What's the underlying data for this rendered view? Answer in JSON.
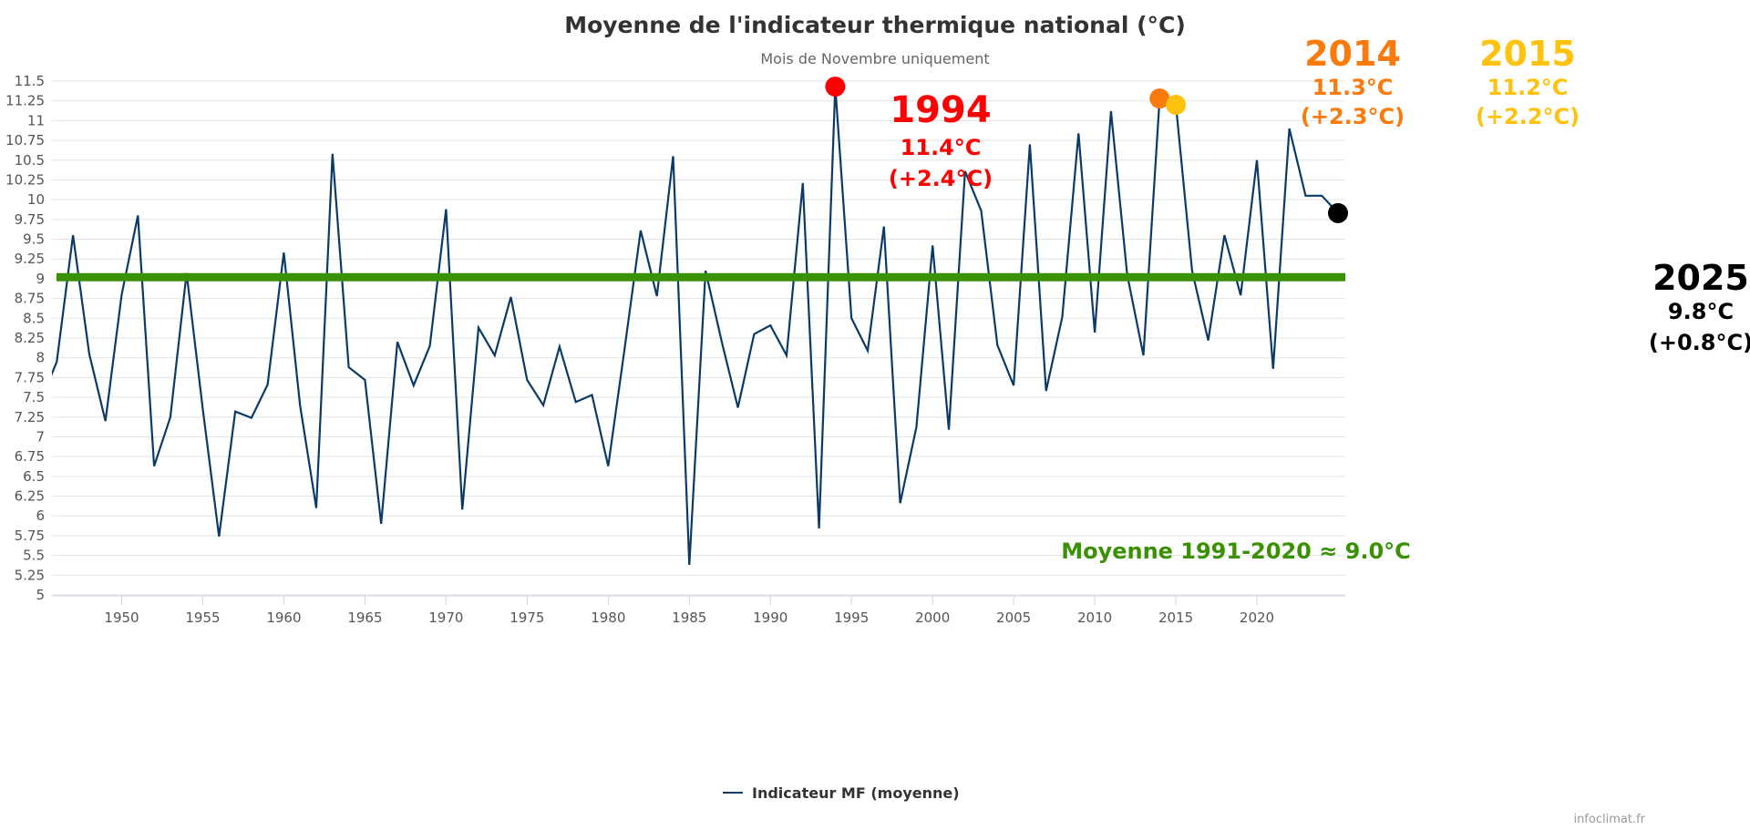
{
  "chart_data": {
    "type": "line",
    "title": "Moyenne de l'indicateur thermique national (°C)",
    "subtitle": "Mois de Novembre uniquement",
    "xlabel": "",
    "ylabel": "",
    "xlim": [
      1945.7,
      2025.45
    ],
    "ylim": [
      5,
      11.5
    ],
    "grid": true,
    "legend_placement": "bottom",
    "y_ticks": [
      "5",
      "5.25",
      "5.5",
      "5.75",
      "6",
      "6.25",
      "6.5",
      "6.75",
      "7",
      "7.25",
      "7.5",
      "7.75",
      "8",
      "8.25",
      "8.5",
      "8.75",
      "9",
      "9.25",
      "9.5",
      "9.75",
      "10",
      "10.25",
      "10.5",
      "10.75",
      "11",
      "11.25",
      "11.5"
    ],
    "x_ticks": [
      "1950",
      "1955",
      "1960",
      "1965",
      "1970",
      "1975",
      "1980",
      "1985",
      "1990",
      "1995",
      "2000",
      "2005",
      "2010",
      "2015",
      "2020"
    ],
    "series": [
      {
        "name": "Indicateur MF (moyenne)",
        "color": "#0b3a66",
        "x": [
          1945,
          1946,
          1947,
          1948,
          1949,
          1950,
          1951,
          1952,
          1953,
          1954,
          1955,
          1956,
          1957,
          1958,
          1959,
          1960,
          1961,
          1962,
          1963,
          1964,
          1965,
          1966,
          1967,
          1968,
          1969,
          1970,
          1971,
          1972,
          1973,
          1974,
          1975,
          1976,
          1977,
          1978,
          1979,
          1980,
          1981,
          1982,
          1983,
          1984,
          1985,
          1986,
          1987,
          1988,
          1989,
          1990,
          1991,
          1992,
          1993,
          1994,
          1995,
          1996,
          1997,
          1998,
          1999,
          2000,
          2001,
          2002,
          2003,
          2004,
          2005,
          2006,
          2007,
          2008,
          2009,
          2010,
          2011,
          2012,
          2013,
          2014,
          2015,
          2016,
          2017,
          2018,
          2019,
          2020,
          2021,
          2022,
          2023,
          2024,
          2025
        ],
        "y": [
          7.45,
          7.95,
          9.55,
          8.05,
          7.2,
          8.8,
          9.8,
          6.63,
          7.25,
          9.07,
          7.35,
          5.74,
          7.32,
          7.24,
          7.66,
          9.33,
          7.4,
          6.1,
          10.58,
          7.88,
          7.72,
          5.9,
          8.2,
          7.65,
          8.15,
          9.88,
          6.08,
          8.38,
          8.03,
          8.77,
          7.72,
          7.4,
          8.14,
          7.44,
          7.53,
          6.63,
          8.1,
          9.61,
          8.78,
          10.55,
          5.38,
          9.1,
          8.2,
          7.37,
          8.3,
          8.41,
          8.03,
          10.21,
          5.84,
          11.43,
          8.5,
          8.09,
          9.66,
          6.16,
          7.12,
          9.42,
          7.09,
          10.36,
          9.86,
          8.16,
          7.65,
          10.7,
          7.58,
          8.52,
          10.84,
          8.32,
          11.12,
          9.05,
          8.03,
          11.28,
          11.2,
          9.1,
          8.22,
          9.55,
          8.79,
          10.5,
          7.86,
          10.9,
          10.05,
          10.05,
          9.83
        ]
      }
    ],
    "reference_line": {
      "value": 9.02,
      "color": "#3a9104",
      "label": "Moyenne 1991-2020  ≈ 9.0°C"
    },
    "annotations": [
      {
        "year": 1994,
        "value": 11.43,
        "color": "#ff0000",
        "label": "1994",
        "temp": "11.4°C",
        "anomaly": "(+2.4°C)"
      },
      {
        "year": 2014,
        "value": 11.28,
        "color": "#fb7a0c",
        "label": "2014",
        "temp": "11.3°C",
        "anomaly": "(+2.3°C)"
      },
      {
        "year": 2015,
        "value": 11.2,
        "color": "#ffc20e",
        "label": "2015",
        "temp": "11.2°C",
        "anomaly": "(+2.2°C)"
      },
      {
        "year": 2025,
        "value": 9.83,
        "color": "#000000",
        "label": "2025",
        "temp": "9.8°C",
        "anomaly": "(+0.8°C)"
      }
    ],
    "credits": "infoclimat.fr"
  }
}
